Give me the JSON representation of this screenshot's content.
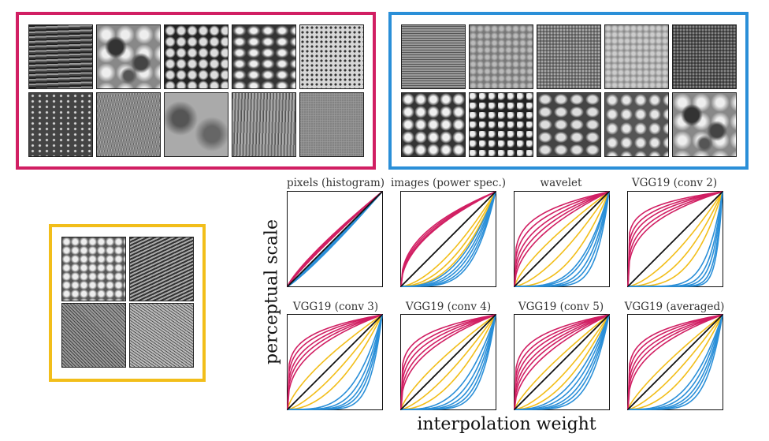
{
  "figure": {
    "ylabel": "perceptual scale",
    "xlabel": "interpolation weight",
    "colors": {
      "magenta": "#d11f63",
      "blue": "#2a8fd8",
      "yellow": "#f2be1a",
      "diagonal": "#111111"
    }
  },
  "groups": [
    {
      "name": "magenta-texture-set",
      "color": "#d11f63",
      "rows": 2,
      "cols": 5,
      "textures": [
        "horizontal-stripes",
        "soft-blobs",
        "dark-cells",
        "wavy-cells",
        "dotted-grid",
        "scribbles",
        "fine-weave",
        "blurry-noise",
        "vertical-grain",
        "fine-noise"
      ]
    },
    {
      "name": "blue-texture-set",
      "color": "#2a8fd8",
      "rows": 2,
      "cols": 5,
      "textures": [
        "woven-grid",
        "granite",
        "fine-grain",
        "soft-noise",
        "dense-noise",
        "bright-pebbles",
        "rocky-relief",
        "bubbly-cells",
        "cellular-relief",
        "soft-blobs"
      ]
    },
    {
      "name": "yellow-texture-set",
      "color": "#f2be1a",
      "rows": 2,
      "cols": 2,
      "textures": [
        "blob-noise",
        "diagonal-weave",
        "fine-mesh",
        "diagonal-hatching"
      ]
    }
  ],
  "chart_data": [
    {
      "type": "line",
      "title": "pixels (histogram)",
      "xlim": [
        0,
        1
      ],
      "ylim": [
        0,
        1
      ],
      "series": [
        {
          "color": "magenta",
          "exponents": [
            0.82,
            0.84,
            0.86,
            0.88,
            0.9
          ]
        },
        {
          "color": "blue",
          "exponents": [
            1.05,
            1.08,
            1.11,
            1.14
          ]
        },
        {
          "color": "yellow",
          "exponents": []
        }
      ]
    },
    {
      "type": "line",
      "title": "images (power spec.)",
      "xlim": [
        0,
        1
      ],
      "ylim": [
        0,
        1
      ],
      "series": [
        {
          "color": "magenta",
          "exponents": [
            0.42,
            0.45,
            0.48,
            0.5
          ]
        },
        {
          "color": "blue",
          "exponents": [
            2.6,
            3.0,
            3.4,
            3.9,
            4.4
          ]
        },
        {
          "color": "yellow",
          "exponents": [
            1.6,
            2.0,
            2.4
          ]
        }
      ]
    },
    {
      "type": "line",
      "title": "wavelet",
      "xlim": [
        0,
        1
      ],
      "ylim": [
        0,
        1
      ],
      "series": [
        {
          "color": "magenta",
          "exponents": [
            0.22,
            0.28,
            0.35,
            0.42,
            0.5
          ]
        },
        {
          "color": "blue",
          "exponents": [
            3.5,
            4.0,
            5.0,
            6.0,
            7.5
          ]
        },
        {
          "color": "yellow",
          "exponents": [
            0.75,
            1.5,
            2.4
          ]
        }
      ]
    },
    {
      "type": "line",
      "title": "VGG19 (conv 2)",
      "xlim": [
        0,
        1
      ],
      "ylim": [
        0,
        1
      ],
      "series": [
        {
          "color": "magenta",
          "exponents": [
            0.14,
            0.18,
            0.22,
            0.27,
            0.32
          ]
        },
        {
          "color": "blue",
          "exponents": [
            6.0,
            8.0,
            10.0,
            13.0,
            16.0
          ]
        },
        {
          "color": "yellow",
          "exponents": [
            1.5,
            2.2,
            3.2
          ]
        }
      ]
    },
    {
      "type": "line",
      "title": "VGG19 (conv 3)",
      "xlim": [
        0,
        1
      ],
      "ylim": [
        0,
        1
      ],
      "series": [
        {
          "color": "magenta",
          "exponents": [
            0.18,
            0.22,
            0.27,
            0.32,
            0.38
          ]
        },
        {
          "color": "blue",
          "exponents": [
            3.5,
            4.5,
            5.5,
            6.5,
            8.0
          ]
        },
        {
          "color": "yellow",
          "exponents": [
            0.7,
            1.4,
            2.0
          ]
        }
      ]
    },
    {
      "type": "line",
      "title": "VGG19 (conv 4)",
      "xlim": [
        0,
        1
      ],
      "ylim": [
        0,
        1
      ],
      "series": [
        {
          "color": "magenta",
          "exponents": [
            0.18,
            0.23,
            0.28,
            0.34,
            0.4
          ]
        },
        {
          "color": "blue",
          "exponents": [
            3.0,
            3.8,
            4.6,
            5.5,
            6.5
          ]
        },
        {
          "color": "yellow",
          "exponents": [
            0.75,
            1.4,
            2.0
          ]
        }
      ]
    },
    {
      "type": "line",
      "title": "VGG19 (conv 5)",
      "xlim": [
        0,
        1
      ],
      "ylim": [
        0,
        1
      ],
      "series": [
        {
          "color": "magenta",
          "exponents": [
            0.2,
            0.25,
            0.3,
            0.36,
            0.42,
            0.5
          ]
        },
        {
          "color": "blue",
          "exponents": [
            2.5,
            3.0,
            3.6,
            4.2,
            5.0
          ]
        },
        {
          "color": "yellow",
          "exponents": [
            0.8,
            1.5,
            2.0
          ]
        }
      ]
    },
    {
      "type": "line",
      "title": "VGG19 (averaged)",
      "xlim": [
        0,
        1
      ],
      "ylim": [
        0,
        1
      ],
      "series": [
        {
          "color": "magenta",
          "exponents": [
            0.18,
            0.22,
            0.27,
            0.32,
            0.38
          ]
        },
        {
          "color": "blue",
          "exponents": [
            3.0,
            3.6,
            4.3,
            5.0,
            6.0
          ]
        },
        {
          "color": "yellow",
          "exponents": [
            0.8,
            1.4,
            2.0
          ]
        }
      ]
    }
  ]
}
